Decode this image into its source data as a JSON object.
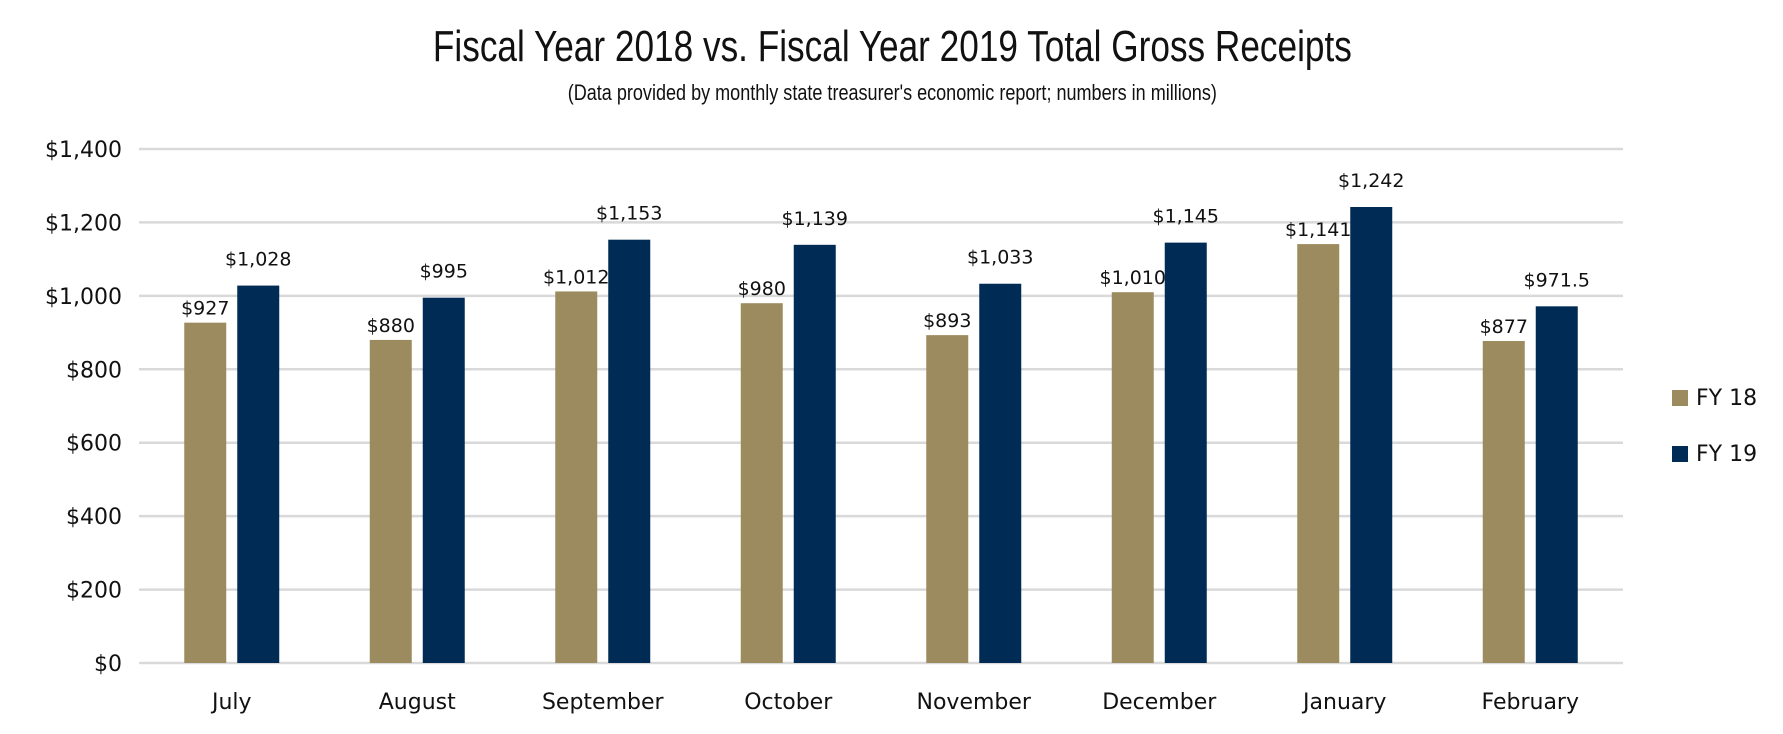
{
  "chart_data": {
    "type": "bar",
    "title": "Fiscal Year 2018 vs. Fiscal Year 2019 Total Gross Receipts",
    "subtitle": "(Data provided by monthly state treasurer's economic report; numbers in millions)",
    "xlabel": "",
    "ylabel": "",
    "ylim": [
      0,
      1400
    ],
    "yticks": [
      0,
      200,
      400,
      600,
      800,
      1000,
      1200,
      1400
    ],
    "ytick_labels": [
      "$0",
      "$200",
      "$400",
      "$600",
      "$800",
      "$1,000",
      "$1,200",
      "$1,400"
    ],
    "grid": true,
    "legend_position": "right",
    "categories": [
      "July",
      "August",
      "September",
      "October",
      "November",
      "December",
      "January",
      "February"
    ],
    "series": [
      {
        "name": "FY 18",
        "color": "#9C8B5E",
        "values": [
          927,
          880,
          1012,
          980,
          893,
          1010,
          1141,
          877
        ],
        "labels": [
          "$927",
          "$880",
          "$1,012",
          "$980",
          "$893",
          "$1,010",
          "$1,141",
          "$877"
        ]
      },
      {
        "name": "FY 19",
        "color": "#002B54",
        "values": [
          1028,
          995,
          1153,
          1139,
          1033,
          1145,
          1242,
          971.5
        ],
        "labels": [
          "$1,028",
          "$995",
          "$1,153",
          "$1,139",
          "$1,033",
          "$1,145",
          "$1,242",
          "$971.5"
        ]
      }
    ]
  }
}
